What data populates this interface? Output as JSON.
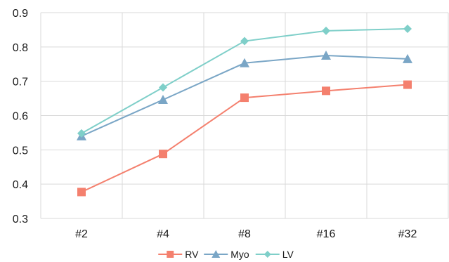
{
  "chart_data": {
    "type": "line",
    "title": "",
    "xlabel": "",
    "ylabel": "",
    "categories": [
      "#2",
      "#4",
      "#8",
      "#16",
      "#32"
    ],
    "ylim": [
      0.3,
      0.9
    ],
    "yticks": [
      "0.3",
      "0.4",
      "0.5",
      "0.6",
      "0.7",
      "0.8",
      "0.9"
    ],
    "grid": true,
    "legend_position": "bottom",
    "series": [
      {
        "name": "RV",
        "values": [
          0.377,
          0.488,
          0.652,
          0.672,
          0.69
        ],
        "color": "#F4806E",
        "marker": "square"
      },
      {
        "name": "Myo",
        "values": [
          0.54,
          0.646,
          0.753,
          0.775,
          0.765
        ],
        "color": "#7AA6C6",
        "marker": "triangle"
      },
      {
        "name": "LV",
        "values": [
          0.548,
          0.682,
          0.817,
          0.847,
          0.853
        ],
        "color": "#7FCFC9",
        "marker": "diamond"
      }
    ]
  }
}
